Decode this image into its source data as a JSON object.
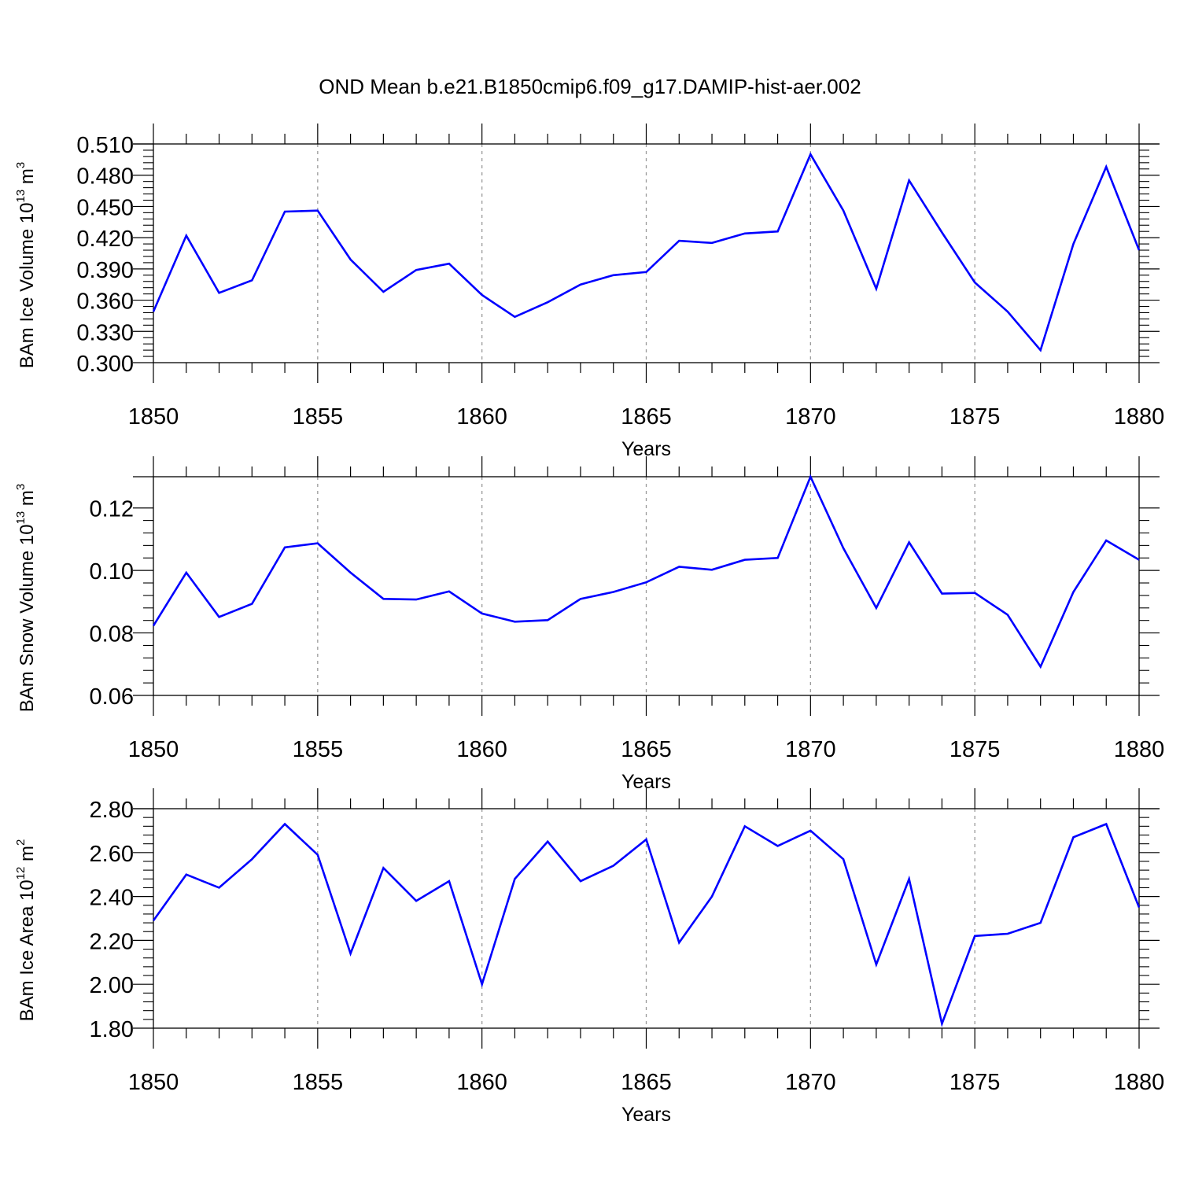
{
  "chart_data": [
    {
      "type": "line",
      "title": "OND Mean b.e21.B1850cmip6.f09_g17.DAMIP-hist-aer.002",
      "ylabel_main": "BAm Ice Volume 10",
      "ylabel_exp": "13",
      "ylabel_unit": "m",
      "ylabel_unit_exp": "3",
      "xlabel": "Years",
      "xlim": [
        1850,
        1880
      ],
      "ylim": [
        0.3,
        0.51
      ],
      "yticks": [
        "0.300",
        "0.330",
        "0.360",
        "0.390",
        "0.420",
        "0.450",
        "0.480",
        "0.510"
      ],
      "ytick_values": [
        0.3,
        0.33,
        0.36,
        0.39,
        0.42,
        0.45,
        0.48,
        0.51
      ],
      "xticks": [
        "1850",
        "1855",
        "1860",
        "1865",
        "1870",
        "1875",
        "1880"
      ],
      "x": [
        1850,
        1851,
        1852,
        1853,
        1854,
        1855,
        1856,
        1857,
        1858,
        1859,
        1860,
        1861,
        1862,
        1863,
        1864,
        1865,
        1866,
        1867,
        1868,
        1869,
        1870,
        1871,
        1872,
        1873,
        1874,
        1875,
        1876,
        1877,
        1878,
        1879,
        1880
      ],
      "series": [
        {
          "name": "BAm Ice Volume",
          "color": "#0000ff",
          "values": [
            0.349,
            0.422,
            0.367,
            0.379,
            0.445,
            0.446,
            0.399,
            0.368,
            0.389,
            0.395,
            0.365,
            0.344,
            0.358,
            0.375,
            0.384,
            0.387,
            0.417,
            0.415,
            0.424,
            0.426,
            0.5,
            0.446,
            0.371,
            0.475,
            0.425,
            0.377,
            0.349,
            0.312,
            0.414,
            0.488,
            0.408
          ]
        }
      ]
    },
    {
      "type": "line",
      "ylabel_main": "BAm Snow Volume 10",
      "ylabel_exp": "13",
      "ylabel_unit": "m",
      "ylabel_unit_exp": "3",
      "xlabel": "Years",
      "xlim": [
        1850,
        1880
      ],
      "ylim": [
        0.06,
        0.13
      ],
      "yticks": [
        "0.06",
        "0.08",
        "0.10",
        "0.12"
      ],
      "ytick_values": [
        0.06,
        0.08,
        0.1,
        0.12
      ],
      "xticks": [
        "1850",
        "1855",
        "1860",
        "1865",
        "1870",
        "1875",
        "1880"
      ],
      "x": [
        1850,
        1851,
        1852,
        1853,
        1854,
        1855,
        1856,
        1857,
        1858,
        1859,
        1860,
        1861,
        1862,
        1863,
        1864,
        1865,
        1866,
        1867,
        1868,
        1869,
        1870,
        1871,
        1872,
        1873,
        1874,
        1875,
        1876,
        1877,
        1878,
        1879,
        1880
      ],
      "series": [
        {
          "name": "BAm Snow Volume",
          "color": "#0000ff",
          "values": [
            0.0823,
            0.0993,
            0.0851,
            0.0893,
            0.1074,
            0.1087,
            0.0993,
            0.0909,
            0.0907,
            0.0933,
            0.0862,
            0.0836,
            0.0841,
            0.0909,
            0.0931,
            0.0962,
            0.1012,
            0.1002,
            0.1034,
            0.104,
            0.13,
            0.1071,
            0.088,
            0.109,
            0.0926,
            0.0928,
            0.0858,
            0.0692,
            0.0931,
            0.1096,
            0.1034
          ]
        }
      ]
    },
    {
      "type": "line",
      "ylabel_main": "BAm Ice Area 10",
      "ylabel_exp": "12",
      "ylabel_unit": "m",
      "ylabel_unit_exp": "2",
      "xlabel": "Years",
      "xlim": [
        1850,
        1880
      ],
      "ylim": [
        1.8,
        2.8
      ],
      "yticks": [
        "1.80",
        "2.00",
        "2.20",
        "2.40",
        "2.60",
        "2.80"
      ],
      "ytick_values": [
        1.8,
        2.0,
        2.2,
        2.4,
        2.6,
        2.8
      ],
      "xticks": [
        "1850",
        "1855",
        "1860",
        "1865",
        "1870",
        "1875",
        "1880"
      ],
      "x": [
        1850,
        1851,
        1852,
        1853,
        1854,
        1855,
        1856,
        1857,
        1858,
        1859,
        1860,
        1861,
        1862,
        1863,
        1864,
        1865,
        1866,
        1867,
        1868,
        1869,
        1870,
        1871,
        1872,
        1873,
        1874,
        1875,
        1876,
        1877,
        1878,
        1879,
        1880
      ],
      "series": [
        {
          "name": "BAm Ice Area",
          "color": "#0000ff",
          "values": [
            2.29,
            2.5,
            2.44,
            2.57,
            2.73,
            2.59,
            2.14,
            2.53,
            2.38,
            2.47,
            2.0,
            2.48,
            2.65,
            2.47,
            2.54,
            2.66,
            2.19,
            2.4,
            2.72,
            2.63,
            2.7,
            2.57,
            2.09,
            2.48,
            1.82,
            2.22,
            2.23,
            2.28,
            2.67,
            2.73,
            2.35
          ]
        }
      ]
    }
  ]
}
